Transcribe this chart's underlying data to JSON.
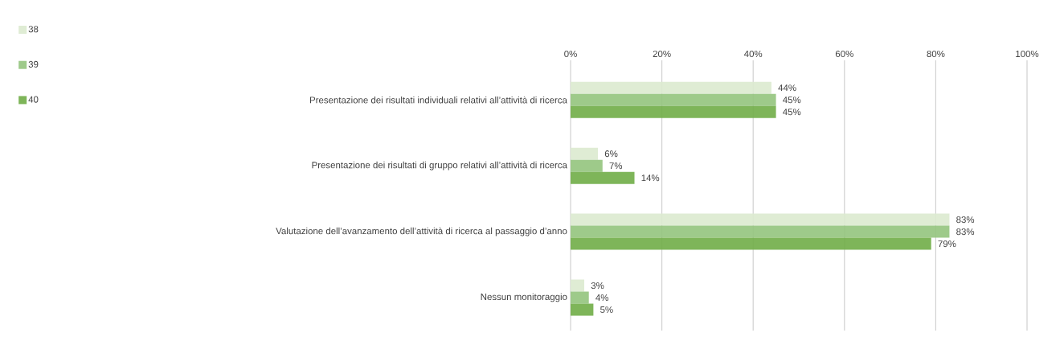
{
  "chart_data": {
    "type": "bar",
    "orientation": "horizontal",
    "categories": [
      "Presentazione dei risultati individuali relativi all’attività di ricerca",
      "Presentazione dei risultati di gruppo relativi all’attività di ricerca",
      "Valutazione dell’avanzamento dell’attività di ricerca al passaggio d’anno",
      "Nessun monitoraggio"
    ],
    "series": [
      {
        "name": "38",
        "color": "#dceacf",
        "values": [
          44,
          6,
          83,
          3
        ],
        "value_labels": [
          "44%",
          "6%",
          "83%",
          "3%"
        ]
      },
      {
        "name": "39",
        "color": "#93c47d",
        "values": [
          45,
          7,
          83,
          4
        ],
        "value_labels": [
          "45%",
          "7%",
          "83%",
          "4%"
        ]
      },
      {
        "name": "40",
        "color": "#70ad47",
        "values": [
          45,
          14,
          79,
          5
        ],
        "value_labels": [
          "45%",
          "14%",
          "79%",
          "5%"
        ]
      }
    ],
    "xlim": [
      0,
      100
    ],
    "xticks": [
      {
        "value": 0,
        "label": "0%"
      },
      {
        "value": 20,
        "label": "20%"
      },
      {
        "value": 40,
        "label": "40%"
      },
      {
        "value": 60,
        "label": "60%"
      },
      {
        "value": 80,
        "label": "80%"
      },
      {
        "value": 100,
        "label": "100%"
      }
    ],
    "grid": "x",
    "legend": "top left"
  }
}
